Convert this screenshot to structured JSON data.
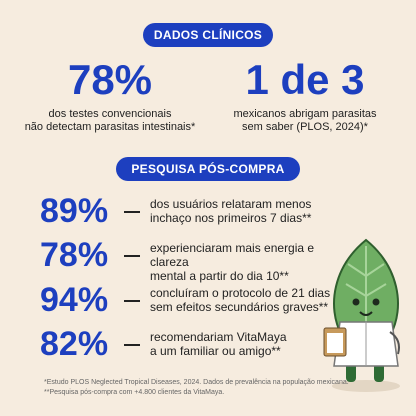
{
  "header": {
    "title": "DADOS CLÍNICOS"
  },
  "stats": [
    {
      "value": "78%",
      "lines": [
        "dos testes convencionais",
        "não detectam parasitas intestinais*"
      ]
    },
    {
      "value": "1 de 3",
      "lines": [
        "mexicanos abrigam parasitas",
        "sem saber (PLOS, 2024)*"
      ]
    }
  ],
  "survey": {
    "title": "PESQUISA PÓS-COMPRA",
    "items": [
      {
        "value": "89%",
        "lines": [
          "dos usuários relataram menos",
          "inchaço nos primeiros 7 dias**"
        ]
      },
      {
        "value": "78%",
        "lines": [
          "experienciaram mais energia e clareza",
          "mental a partir do dia 10**"
        ]
      },
      {
        "value": "94%",
        "lines": [
          "concluíram o protocolo de 21 dias",
          "sem efeitos secundários graves**"
        ]
      },
      {
        "value": "82%",
        "lines": [
          "recomendariam VitaMaya",
          "a um familiar ou amigo**"
        ]
      }
    ]
  },
  "footnotes": [
    "*Estudo PLOS Neglected Tropical Diseases, 2024. Dados de prevalência na população mexicana.",
    "**Pesquisa pós-compra com +4.800 clientes da VitaMaya."
  ]
}
